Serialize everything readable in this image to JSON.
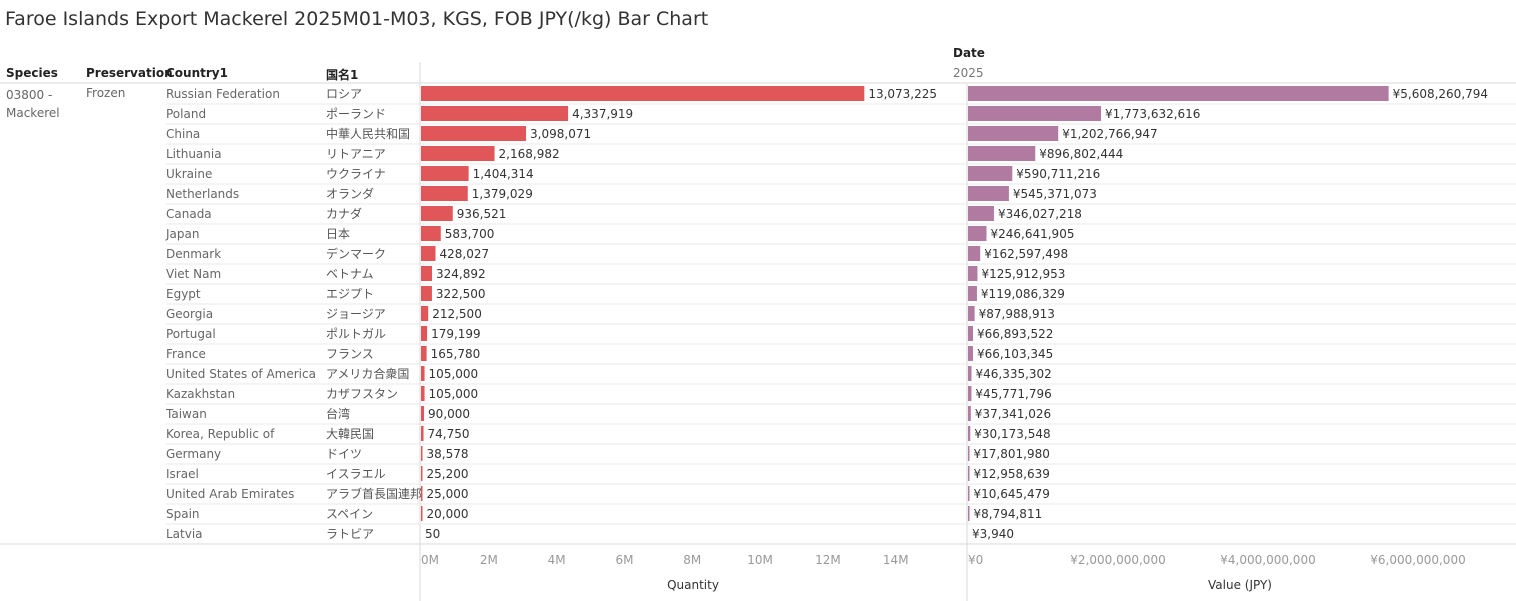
{
  "title": "Faroe Islands Export Mackerel 2025M01-M03, KGS, FOB JPY(/kg) Bar Chart",
  "headers": {
    "species": "Species",
    "preservation": "Preservation",
    "country": "Country1",
    "japanese": "国名1",
    "date": "Date",
    "year": "2025"
  },
  "species_value": "03800 - Mackerel",
  "preservation_value": "Frozen",
  "colors": {
    "quantity_bar": "#e15759",
    "value_bar": "#b07aa1"
  },
  "chart_data": [
    {
      "type": "bar",
      "orientation": "horizontal",
      "xlabel": "Quantity",
      "xlim": [
        0,
        15600000
      ],
      "ticks": [
        0,
        2000000,
        4000000,
        6000000,
        8000000,
        10000000,
        12000000,
        14000000
      ],
      "tick_labels": [
        "0M",
        "2M",
        "4M",
        "6M",
        "8M",
        "10M",
        "12M",
        "14M"
      ],
      "categories": [
        "Russian Federation",
        "Poland",
        "China",
        "Lithuania",
        "Ukraine",
        "Netherlands",
        "Canada",
        "Japan",
        "Denmark",
        "Viet Nam",
        "Egypt",
        "Georgia",
        "Portugal",
        "France",
        "United States of America",
        "Kazakhstan",
        "Taiwan",
        "Korea, Republic of",
        "Germany",
        "Israel",
        "United Arab Emirates",
        "Spain",
        "Latvia"
      ],
      "categories_ja": [
        "ロシア",
        "ポーランド",
        "中華人民共和国",
        "リトアニア",
        "ウクライナ",
        "オランダ",
        "カナダ",
        "日本",
        "デンマーク",
        "ベトナム",
        "エジプト",
        "ジョージア",
        "ポルトガル",
        "フランス",
        "アメリカ合衆国",
        "カザフスタン",
        "台湾",
        "大韓民国",
        "ドイツ",
        "イスラエル",
        "アラブ首長国連邦",
        "スペイン",
        "ラトビア"
      ],
      "values": [
        13073225,
        4337919,
        3098071,
        2168982,
        1404314,
        1379029,
        936521,
        583700,
        428027,
        324892,
        322500,
        212500,
        179199,
        165780,
        105000,
        105000,
        90000,
        74750,
        38578,
        25200,
        25000,
        20000,
        50
      ],
      "labels": [
        "13,073,225",
        "4,337,919",
        "3,098,071",
        "2,168,982",
        "1,404,314",
        "1,379,029",
        "936,521",
        "583,700",
        "428,027",
        "324,892",
        "322,500",
        "212,500",
        "179,199",
        "165,780",
        "105,000",
        "105,000",
        "90,000",
        "74,750",
        "38,578",
        "25,200",
        "25,000",
        "20,000",
        "50"
      ]
    },
    {
      "type": "bar",
      "orientation": "horizontal",
      "xlabel": "Value (JPY)",
      "xlim": [
        0,
        7200000000
      ],
      "ticks": [
        0,
        2000000000,
        4000000000,
        6000000000
      ],
      "tick_labels": [
        "¥0",
        "¥2,000,000,000",
        "¥4,000,000,000",
        "¥6,000,000,000"
      ],
      "categories": [
        "Russian Federation",
        "Poland",
        "China",
        "Lithuania",
        "Ukraine",
        "Netherlands",
        "Canada",
        "Japan",
        "Denmark",
        "Viet Nam",
        "Egypt",
        "Georgia",
        "Portugal",
        "France",
        "United States of America",
        "Kazakhstan",
        "Taiwan",
        "Korea, Republic of",
        "Germany",
        "Israel",
        "United Arab Emirates",
        "Spain",
        "Latvia"
      ],
      "values": [
        5608260794,
        1773632616,
        1202766947,
        896802444,
        590711216,
        545371073,
        346027218,
        246641905,
        162597498,
        125912953,
        119086329,
        87988913,
        66893522,
        66103345,
        46335302,
        45771796,
        37341026,
        30173548,
        17801980,
        12958639,
        10645479,
        8794811,
        3940
      ],
      "labels": [
        "¥5,608,260,794",
        "¥1,773,632,616",
        "¥1,202,766,947",
        "¥896,802,444",
        "¥590,711,216",
        "¥545,371,073",
        "¥346,027,218",
        "¥246,641,905",
        "¥162,597,498",
        "¥125,912,953",
        "¥119,086,329",
        "¥87,988,913",
        "¥66,893,522",
        "¥66,103,345",
        "¥46,335,302",
        "¥45,771,796",
        "¥37,341,026",
        "¥30,173,548",
        "¥17,801,980",
        "¥12,958,639",
        "¥10,645,479",
        "¥8,794,811",
        "¥3,940"
      ]
    }
  ]
}
